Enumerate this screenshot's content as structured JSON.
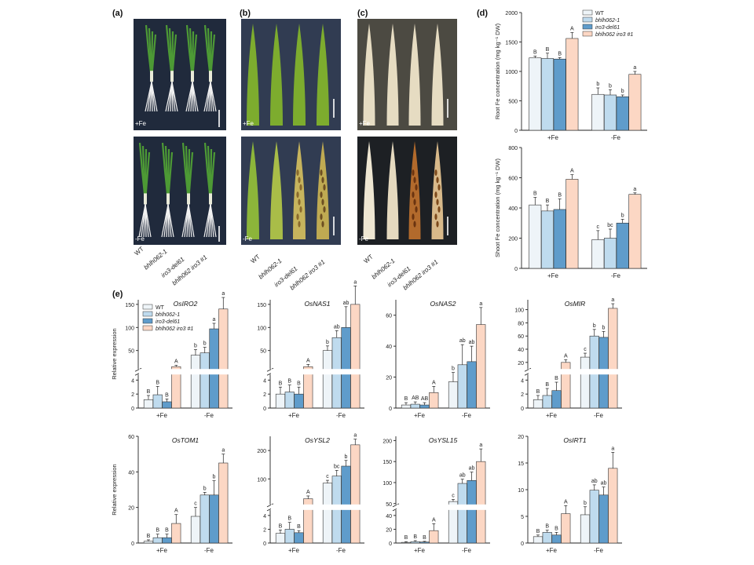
{
  "panels": {
    "a": "(a)",
    "b": "(b)",
    "c": "(c)",
    "d": "(d)",
    "e": "(e)"
  },
  "photo_labels": {
    "plus_fe": "+Fe",
    "minus_fe": "-Fe"
  },
  "genotypes": [
    "WT",
    "bhlh062-1",
    "iro3-del61",
    "bhlh062 iro3 #1"
  ],
  "colors": {
    "WT": "#eef4f8",
    "bhlh062-1": "#bfdbee",
    "iro3-del61": "#5f9ccb",
    "bhlh062 iro3 #1": "#fcd7c4",
    "photo_bg_a": "#202a3c",
    "photo_bg_b": "#313c52",
    "photo_bg_c": "#4c4a42",
    "photo_bg_c_low": "#1d2024",
    "leaf_green": "#7dac2e",
    "plant_green": "#4d9a35"
  },
  "conditions": [
    "+Fe",
    "-Fe"
  ],
  "chart_data": [
    {
      "id": "d-root",
      "type": "bar",
      "ylabel": "Root Fe concentration (mg kg⁻¹ DW)",
      "ylim": [
        0,
        2000
      ],
      "yticks": [
        0,
        500,
        1000,
        1500,
        2000
      ],
      "categories": [
        "+Fe",
        "-Fe"
      ],
      "series": [
        {
          "name": "WT",
          "values": [
            1230,
            610
          ],
          "errors": [
            30,
            110
          ]
        },
        {
          "name": "bhlh062-1",
          "values": [
            1220,
            600
          ],
          "errors": [
            90,
            90
          ]
        },
        {
          "name": "iro3-del61",
          "values": [
            1210,
            570
          ],
          "errors": [
            25,
            30
          ]
        },
        {
          "name": "bhlh062 iro3 #1",
          "values": [
            1560,
            950
          ],
          "errors": [
            100,
            50
          ]
        }
      ],
      "letters": [
        [
          "B",
          "B",
          "B",
          "A"
        ],
        [
          "b",
          "b",
          "b",
          "a"
        ]
      ],
      "legend": true
    },
    {
      "id": "d-shoot",
      "type": "bar",
      "ylabel": "Shoot Fe concentration (mg kg⁻¹ DW)",
      "ylim": [
        0,
        800
      ],
      "yticks": [
        0,
        200,
        400,
        600,
        800
      ],
      "categories": [
        "+Fe",
        "-Fe"
      ],
      "series": [
        {
          "name": "WT",
          "values": [
            420,
            190
          ],
          "errors": [
            50,
            60
          ]
        },
        {
          "name": "bhlh062-1",
          "values": [
            380,
            200
          ],
          "errors": [
            40,
            60
          ]
        },
        {
          "name": "iro3-del61",
          "values": [
            390,
            300
          ],
          "errors": [
            70,
            25
          ]
        },
        {
          "name": "bhlh062 iro3 #1",
          "values": [
            590,
            490
          ],
          "errors": [
            30,
            10
          ]
        }
      ],
      "letters": [
        [
          "B",
          "B",
          "B",
          "A"
        ],
        [
          "c",
          "bc",
          "b",
          "a"
        ]
      ]
    },
    {
      "id": "e-OsIRO2",
      "type": "bar",
      "title": "OsIRO2",
      "ylabel": "Relative expression",
      "broken": true,
      "low_ticks": [
        0,
        2,
        4
      ],
      "low_max": 4.8,
      "high_ticks": [
        50,
        100,
        150
      ],
      "high_min": 10,
      "high_max": 160,
      "categories": [
        "+Fe",
        "-Fe"
      ],
      "series": [
        {
          "name": "WT",
          "values": [
            1.2,
            40
          ],
          "errors": [
            0.6,
            12
          ]
        },
        {
          "name": "bhlh062-1",
          "values": [
            1.9,
            45
          ],
          "errors": [
            1.2,
            12
          ]
        },
        {
          "name": "iro3-del61",
          "values": [
            0.9,
            97
          ],
          "errors": [
            0.4,
            12
          ]
        },
        {
          "name": "bhlh062 iro3 #1",
          "values": [
            15,
            140
          ],
          "errors": [
            3,
            25
          ]
        }
      ],
      "letters": [
        [
          "B",
          "B",
          "B",
          "A"
        ],
        [
          "b",
          "b",
          "a",
          "a"
        ]
      ],
      "legend": true
    },
    {
      "id": "e-OsNAS1",
      "type": "bar",
      "title": "OsNAS1",
      "broken": true,
      "low_ticks": [
        0,
        2,
        4
      ],
      "low_max": 4.8,
      "high_ticks": [
        50,
        100,
        150
      ],
      "high_min": 10,
      "high_max": 160,
      "categories": [
        "+Fe",
        "-Fe"
      ],
      "series": [
        {
          "name": "WT",
          "values": [
            2,
            50
          ],
          "errors": [
            1,
            10
          ]
        },
        {
          "name": "bhlh062-1",
          "values": [
            2.3,
            78
          ],
          "errors": [
            1,
            15
          ]
        },
        {
          "name": "iro3-del61",
          "values": [
            2,
            100
          ],
          "errors": [
            1,
            45
          ]
        },
        {
          "name": "bhlh062 iro3 #1",
          "values": [
            15,
            150
          ],
          "errors": [
            5,
            40
          ]
        }
      ],
      "letters": [
        [
          "B",
          "B",
          "B",
          "A"
        ],
        [
          "b",
          "ab",
          "ab",
          "a"
        ]
      ]
    },
    {
      "id": "e-OsNAS2",
      "type": "bar",
      "title": "OsNAS2",
      "ylim": [
        0,
        70
      ],
      "yticks": [
        0,
        20,
        40,
        60
      ],
      "categories": [
        "+Fe",
        "-Fe"
      ],
      "series": [
        {
          "name": "WT",
          "values": [
            2,
            17
          ],
          "errors": [
            1.5,
            6
          ]
        },
        {
          "name": "bhlh062-1",
          "values": [
            2.5,
            28
          ],
          "errors": [
            1.5,
            13
          ]
        },
        {
          "name": "iro3-del61",
          "values": [
            2,
            30
          ],
          "errors": [
            1.5,
            10
          ]
        },
        {
          "name": "bhlh062 iro3 #1",
          "values": [
            10,
            54
          ],
          "errors": [
            4,
            11
          ]
        }
      ],
      "letters": [
        [
          "B",
          "AB",
          "AB",
          "A"
        ],
        [
          "b",
          "ab",
          "ab",
          "a"
        ]
      ]
    },
    {
      "id": "e-OsMIR",
      "type": "bar",
      "title": "OsMIR",
      "broken": true,
      "low_ticks": [
        0,
        2,
        4
      ],
      "low_max": 4.8,
      "high_ticks": [
        20,
        40,
        60,
        80,
        100
      ],
      "high_min": 10,
      "high_max": 115,
      "categories": [
        "+Fe",
        "-Fe"
      ],
      "series": [
        {
          "name": "WT",
          "values": [
            1.2,
            28
          ],
          "errors": [
            0.6,
            6
          ]
        },
        {
          "name": "bhlh062-1",
          "values": [
            1.8,
            60
          ],
          "errors": [
            1,
            10
          ]
        },
        {
          "name": "iro3-del61",
          "values": [
            2.5,
            58
          ],
          "errors": [
            1.2,
            9
          ]
        },
        {
          "name": "bhlh062 iro3 #1",
          "values": [
            20,
            102
          ],
          "errors": [
            4,
            7
          ]
        }
      ],
      "letters": [
        [
          "B",
          "B",
          "B",
          "A"
        ],
        [
          "c",
          "b",
          "b",
          "a"
        ]
      ]
    },
    {
      "id": "e-OsTOM1",
      "type": "bar",
      "title": "OsTOM1",
      "ylabel": "Relative expression",
      "ylim": [
        0,
        60
      ],
      "yticks": [
        0,
        20,
        40,
        60
      ],
      "categories": [
        "+Fe",
        "-Fe"
      ],
      "series": [
        {
          "name": "WT",
          "values": [
            1,
            15
          ],
          "errors": [
            0.8,
            5
          ]
        },
        {
          "name": "bhlh062-1",
          "values": [
            3,
            27
          ],
          "errors": [
            2,
            1.5
          ]
        },
        {
          "name": "iro3-del61",
          "values": [
            3,
            27
          ],
          "errors": [
            2,
            8
          ]
        },
        {
          "name": "bhlh062 iro3 #1",
          "values": [
            11,
            45
          ],
          "errors": [
            5,
            5
          ]
        }
      ],
      "letters": [
        [
          "B",
          "B",
          "B",
          "A"
        ],
        [
          "c",
          "b",
          "b",
          "a"
        ]
      ]
    },
    {
      "id": "e-OsYSL2",
      "type": "bar",
      "title": "OsYSL2",
      "broken": true,
      "low_ticks": [
        0,
        2,
        4
      ],
      "low_max": 4.8,
      "high_ticks": [
        100,
        200
      ],
      "high_min": 10,
      "high_max": 250,
      "categories": [
        "+Fe",
        "-Fe"
      ],
      "series": [
        {
          "name": "WT",
          "values": [
            1.4,
            85
          ],
          "errors": [
            0.5,
            10
          ]
        },
        {
          "name": "bhlh062-1",
          "values": [
            2,
            110
          ],
          "errors": [
            1,
            20
          ]
        },
        {
          "name": "iro3-del61",
          "values": [
            1.5,
            145
          ],
          "errors": [
            0.3,
            20
          ]
        },
        {
          "name": "bhlh062 iro3 #1",
          "values": [
            30,
            220
          ],
          "errors": [
            10,
            20
          ]
        }
      ],
      "letters": [
        [
          "B",
          "B",
          "B",
          "A"
        ],
        [
          "c",
          "bc",
          "b",
          "a"
        ]
      ]
    },
    {
      "id": "e-OsYSL15",
      "type": "bar",
      "title": "OsYSL15",
      "broken": true,
      "low_ticks": [
        0,
        20,
        40
      ],
      "low_max": 48,
      "high_ticks": [
        50,
        100,
        150,
        200
      ],
      "high_min": 48,
      "high_max": 210,
      "categories": [
        "+Fe",
        "-Fe"
      ],
      "series": [
        {
          "name": "WT",
          "values": [
            1,
            55
          ],
          "errors": [
            1,
            5
          ]
        },
        {
          "name": "bhlh062-1",
          "values": [
            2,
            98
          ],
          "errors": [
            1.5,
            10
          ]
        },
        {
          "name": "iro3-del61",
          "values": [
            1.5,
            105
          ],
          "errors": [
            1,
            20
          ]
        },
        {
          "name": "bhlh062 iro3 #1",
          "values": [
            18,
            150
          ],
          "errors": [
            10,
            30
          ]
        }
      ],
      "letters": [
        [
          "B",
          "B",
          "B",
          "A"
        ],
        [
          "c",
          "ab",
          "ab",
          "a"
        ]
      ]
    },
    {
      "id": "e-OsIRT1",
      "type": "bar",
      "title": "OsIRT1",
      "ylim": [
        0,
        20
      ],
      "yticks": [
        0,
        5,
        10,
        15,
        20
      ],
      "categories": [
        "+Fe",
        "-Fe"
      ],
      "series": [
        {
          "name": "WT",
          "values": [
            1.2,
            5.3
          ],
          "errors": [
            0.3,
            1.5
          ]
        },
        {
          "name": "bhlh062-1",
          "values": [
            2,
            9.9
          ],
          "errors": [
            0.4,
            1
          ]
        },
        {
          "name": "iro3-del61",
          "values": [
            1.5,
            9
          ],
          "errors": [
            0.5,
            1.5
          ]
        },
        {
          "name": "bhlh062 iro3 #1",
          "values": [
            5.5,
            14
          ],
          "errors": [
            1.5,
            3
          ]
        }
      ],
      "letters": [
        [
          "B",
          "B",
          "B",
          "A"
        ],
        [
          "b",
          "ab",
          "ab",
          "a"
        ]
      ]
    }
  ]
}
